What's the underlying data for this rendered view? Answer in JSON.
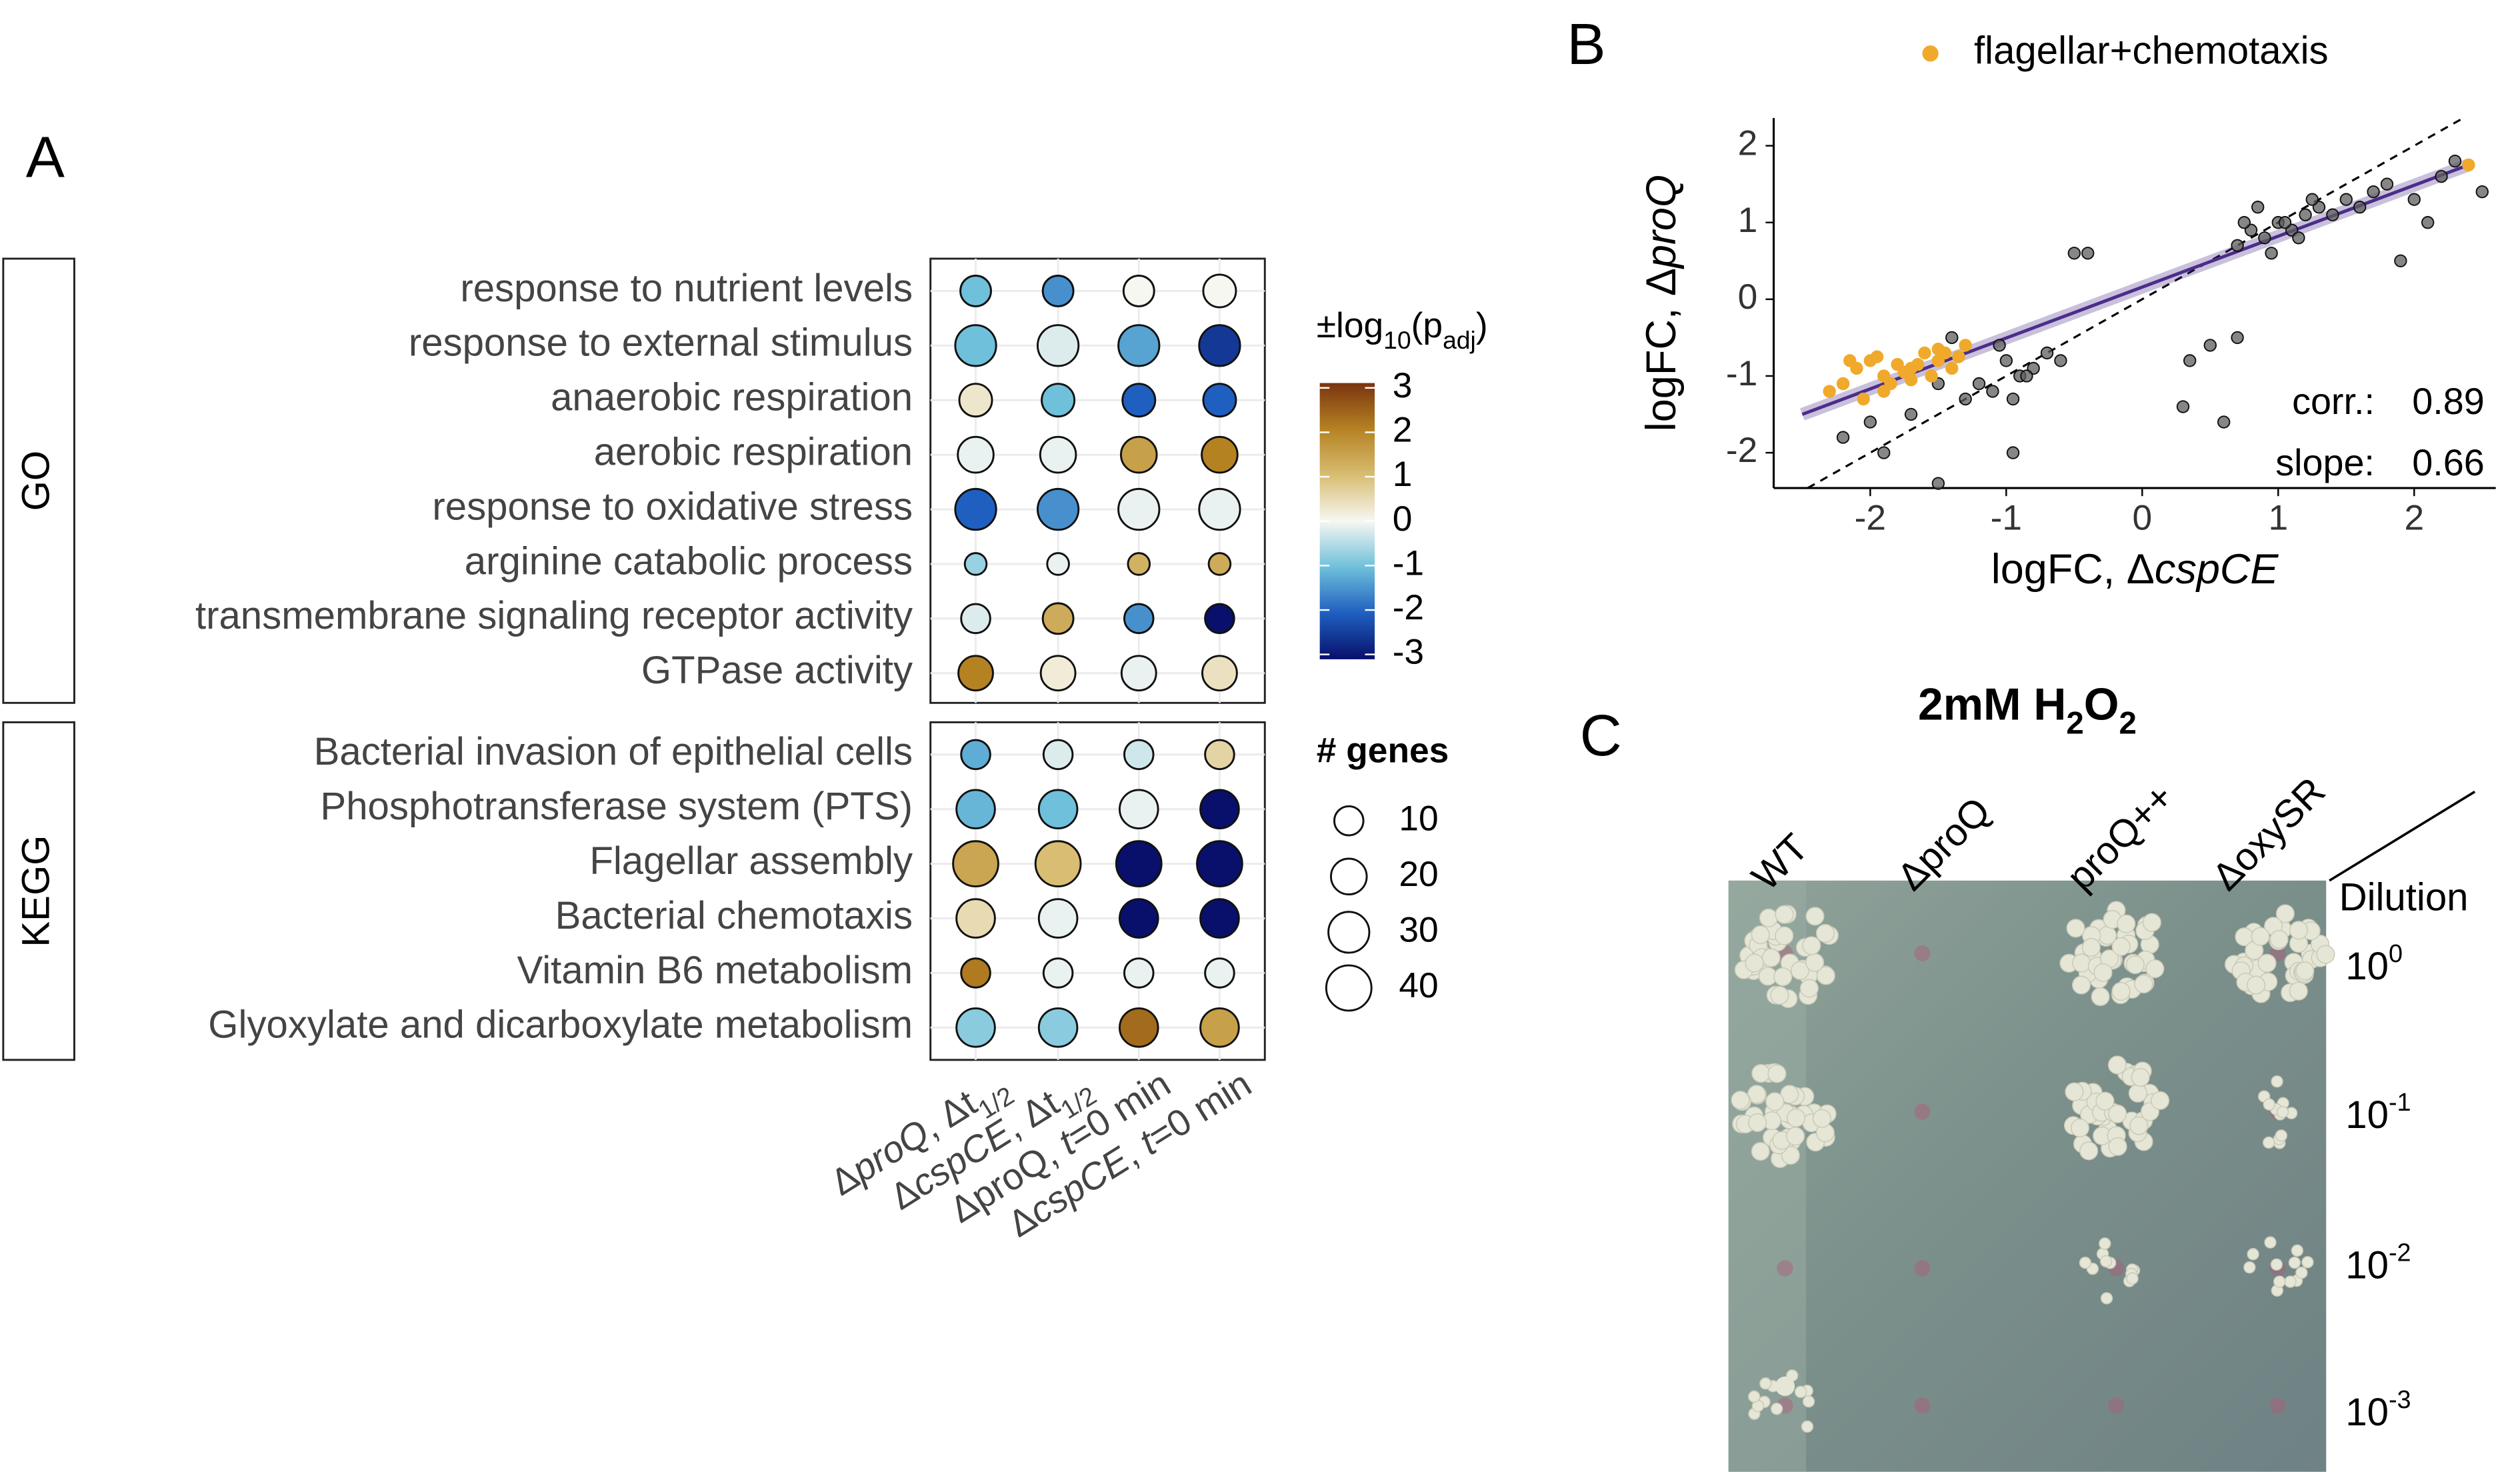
{
  "chart_data": [
    {
      "type": "dotplot",
      "label": "A",
      "columns": [
        [
          {
            "text": "Δ"
          },
          {
            "text": "proQ",
            "style": "italic"
          },
          {
            "text": ", Δt"
          },
          {
            "text": "1/2",
            "style": "sub"
          }
        ],
        [
          {
            "text": "Δ"
          },
          {
            "text": "cspCE",
            "style": "italic"
          },
          {
            "text": ", Δt"
          },
          {
            "text": "1/2",
            "style": "sub"
          }
        ],
        [
          {
            "text": "ΔproQ, "
          },
          {
            "text": "t",
            "style": "italic"
          },
          {
            "text": "=0 min"
          }
        ],
        [
          {
            "text": "Δ"
          },
          {
            "text": "cspCE",
            "style": "italic"
          },
          {
            "text": ", "
          },
          {
            "text": "t",
            "style": "italic"
          },
          {
            "text": "=0 min"
          }
        ]
      ],
      "groups": [
        {
          "name": "GO",
          "categories": [
            "response to nutrient levels",
            "response to external stimulus",
            "anaerobic respiration",
            "aerobic respiration",
            "response to oxidative stress",
            "arginine catabolic process",
            "transmembrane signaling receptor activity",
            "GTPase activity"
          ],
          "values": [
            [
              -1,
              -1.5,
              0,
              0
            ],
            [
              -1,
              -0.2,
              -1.3,
              -2.5
            ],
            [
              0.3,
              -1,
              -2,
              -2
            ],
            [
              -0.1,
              -0.1,
              1.5,
              2
            ],
            [
              -2,
              -1.5,
              -0.1,
              -0.1
            ],
            [
              -0.7,
              -0.1,
              1.2,
              1.3
            ],
            [
              -0.2,
              1.3,
              -1.5,
              -3
            ],
            [
              2,
              0.2,
              -0.1,
              0.4
            ]
          ],
          "sizes": [
            [
              12,
              12,
              12,
              15
            ],
            [
              30,
              30,
              30,
              30
            ],
            [
              15,
              15,
              15,
              15
            ],
            [
              20,
              20,
              20,
              20
            ],
            [
              30,
              30,
              30,
              30
            ],
            [
              3,
              3,
              3,
              3
            ],
            [
              10,
              12,
              10,
              10
            ],
            [
              18,
              18,
              18,
              18
            ]
          ]
        },
        {
          "name": "KEGG",
          "categories": [
            "Bacterial invasion of epithelial cells",
            "Phosphotransferase system (PTS)",
            "Flagellar assembly",
            "Bacterial chemotaxis",
            "Vitamin B6 metabolism",
            "Glyoxylate and dicarboxylate metabolism"
          ],
          "values": [
            [
              -1.2,
              -0.2,
              -0.3,
              0.6
            ],
            [
              -1.1,
              -1,
              -0.1,
              -3
            ],
            [
              1.4,
              1,
              -3,
              -3
            ],
            [
              0.5,
              -0.1,
              -3,
              -3
            ],
            [
              2.1,
              -0.1,
              -0.1,
              -0.1
            ],
            [
              -0.8,
              -0.8,
              2.3,
              1.5
            ]
          ],
          "sizes": [
            [
              10,
              10,
              10,
              10
            ],
            [
              25,
              25,
              25,
              25
            ],
            [
              40,
              40,
              40,
              40
            ],
            [
              25,
              25,
              25,
              25
            ],
            [
              10,
              10,
              10,
              10
            ],
            [
              25,
              25,
              25,
              25
            ]
          ]
        }
      ],
      "colorbar": {
        "title": [
          {
            "text": "±log"
          },
          {
            "text": "10",
            "style": "sub"
          },
          {
            "text": "(p"
          },
          {
            "text": "adj",
            "style": "sub"
          },
          {
            "text": ")"
          }
        ],
        "lim": [
          -3,
          3
        ],
        "ticks": [
          3,
          2,
          1,
          0,
          -1,
          -2,
          -3
        ],
        "colors": [
          "#08106b",
          "#1f5fc0",
          "#6fc0da",
          "#f7f7f2",
          "#d8bd72",
          "#b58222",
          "#7a3410"
        ]
      },
      "size_legend": {
        "title": "# genes",
        "values": [
          10,
          20,
          30,
          40
        ]
      },
      "grid": true
    },
    {
      "type": "scatter",
      "label": "B",
      "xlabel": [
        {
          "text": "logFC, Δ"
        },
        {
          "text": "cspCE",
          "style": "italic"
        }
      ],
      "ylabel": [
        {
          "text": "logFC, Δ"
        },
        {
          "text": "proQ",
          "style": "italic"
        }
      ],
      "xlim": [
        -2.71,
        2.6
      ],
      "ylim": [
        -2.46,
        2.36
      ],
      "xticks": [
        -2,
        -1,
        0,
        1,
        2
      ],
      "yticks": [
        2,
        1,
        0,
        -1,
        -2
      ],
      "identity_line": true,
      "fit_line": {
        "x": [
          -2.5,
          2.4
        ],
        "y": [
          -1.5,
          1.75
        ],
        "color": "#4b2d8a"
      },
      "annotations": [
        {
          "label": "corr.:",
          "value": 0.89
        },
        {
          "label": "slope:",
          "value": 0.66
        }
      ],
      "series": [
        {
          "color": "#5e5e5e",
          "x": [
            0.8,
            0.9,
            1.0,
            1.1,
            1.2,
            0.7,
            0.85,
            1.05,
            1.3,
            1.5,
            1.6,
            1.7,
            1.8,
            2.0,
            2.2,
            1.4,
            0.95,
            1.15,
            0.75,
            1.25,
            -0.9,
            -1.0,
            -1.1,
            -0.8,
            -0.7,
            -1.2,
            -0.95,
            -1.05,
            -0.85,
            -0.6,
            -1.3,
            -1.4,
            -1.5,
            -2.2,
            -1.9,
            -1.5,
            -0.5,
            -0.4,
            0.3,
            0.6,
            0.5,
            2.3,
            2.5,
            1.9,
            -2.0,
            -1.7,
            -0.95,
            0.7,
            0.35,
            2.1
          ],
          "values": [
            0.9,
            0.8,
            1.0,
            0.9,
            1.1,
            0.7,
            1.2,
            1.0,
            1.2,
            1.3,
            1.2,
            1.4,
            1.5,
            1.3,
            1.6,
            1.1,
            0.6,
            0.8,
            1.0,
            1.3,
            -1.0,
            -0.8,
            -1.2,
            -0.9,
            -0.7,
            -1.1,
            -1.3,
            -0.6,
            -1.0,
            -0.8,
            -1.3,
            -0.5,
            -1.1,
            -1.8,
            -2.0,
            -2.4,
            0.6,
            0.6,
            -1.4,
            -1.6,
            -0.6,
            1.8,
            1.4,
            0.5,
            -1.6,
            -1.5,
            -2.0,
            -0.5,
            -0.8,
            1.0
          ]
        },
        {
          "name": "flagellar+chemotaxis",
          "color": "#f0a92a",
          "x": [
            -2.1,
            -2.0,
            -1.9,
            -1.8,
            -1.7,
            -1.6,
            -1.5,
            -1.4,
            -1.3,
            -2.2,
            -2.3,
            -2.05,
            -1.95,
            -1.85,
            -1.75,
            -1.65,
            -1.55,
            -1.45,
            -2.15,
            -1.9,
            -1.7,
            -1.5,
            -1.35,
            2.4
          ],
          "values": [
            -0.9,
            -0.8,
            -1.0,
            -0.85,
            -0.9,
            -0.7,
            -0.8,
            -0.9,
            -0.6,
            -1.1,
            -1.2,
            -1.3,
            -0.75,
            -1.1,
            -0.95,
            -0.85,
            -1.0,
            -0.7,
            -0.8,
            -1.2,
            -1.05,
            -0.65,
            -0.75,
            1.75
          ]
        }
      ]
    }
  ],
  "image_panel": {
    "label": "C",
    "title": [
      {
        "text": "2mM H"
      },
      {
        "text": "2",
        "style": "sub"
      },
      {
        "text": "O"
      },
      {
        "text": "2",
        "style": "sub"
      }
    ],
    "strains": [
      "WT",
      "ΔproQ",
      "proQ++",
      "ΔoxySR"
    ],
    "dilution_header": "Dilution",
    "dilutions": [
      [
        {
          "text": "10"
        },
        {
          "text": "0",
          "style": "sup"
        }
      ],
      [
        {
          "text": "10"
        },
        {
          "text": "-1",
          "style": "sup"
        }
      ],
      [
        {
          "text": "10"
        },
        {
          "text": "-2",
          "style": "sup"
        }
      ],
      [
        {
          "text": "10"
        },
        {
          "text": "-3",
          "style": "sup"
        }
      ]
    ]
  }
}
